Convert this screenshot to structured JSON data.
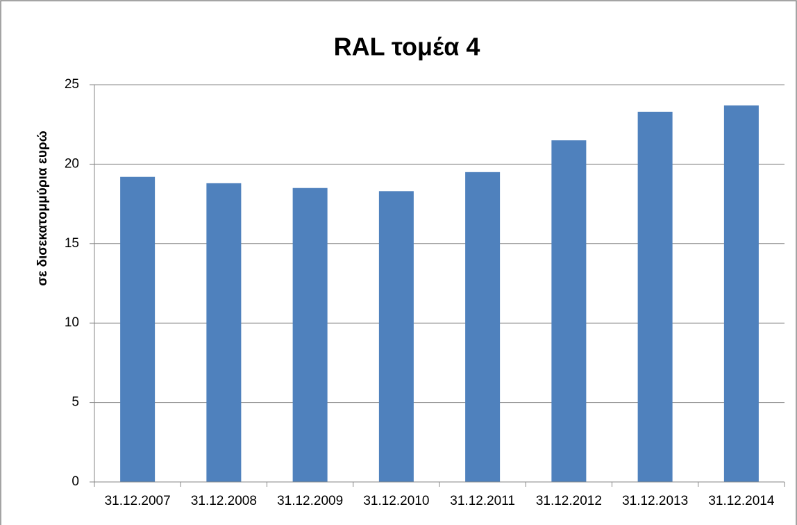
{
  "chart_data": {
    "type": "bar",
    "title": "RAL τομέα 4",
    "y_label": "σε δισεκατομμύρια ευρώ",
    "categories": [
      "31.12.2007",
      "31.12.2008",
      "31.12.2009",
      "31.12.2010",
      "31.12.2011",
      "31.12.2012",
      "31.12.2013",
      "31.12.2014"
    ],
    "values": [
      19.2,
      18.8,
      18.5,
      18.3,
      19.5,
      21.5,
      23.3,
      23.7
    ],
    "color": "#4f81bd",
    "ylim": [
      0,
      25
    ],
    "yticks": [
      0,
      5,
      10,
      15,
      20,
      25
    ],
    "grid": true
  }
}
